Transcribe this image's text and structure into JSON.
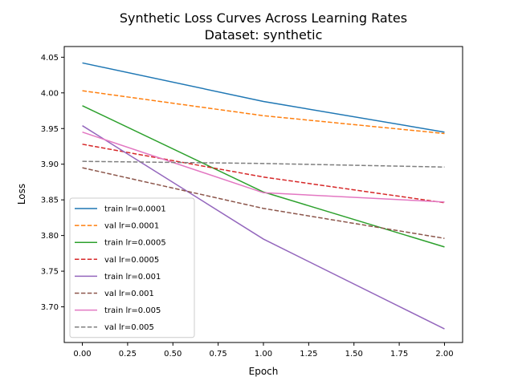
{
  "chart_data": {
    "type": "line",
    "title": "Synthetic Loss Curves Across Learning Rates",
    "subtitle": "Dataset: synthetic",
    "xlabel": "Epoch",
    "ylabel": "Loss",
    "xlim": [
      -0.1,
      2.1
    ],
    "ylim": [
      3.65,
      4.065
    ],
    "xticks": [
      0.0,
      0.25,
      0.5,
      0.75,
      1.0,
      1.25,
      1.5,
      1.75,
      2.0
    ],
    "xtick_labels": [
      "0.00",
      "0.25",
      "0.50",
      "0.75",
      "1.00",
      "1.25",
      "1.50",
      "1.75",
      "2.00"
    ],
    "yticks": [
      3.7,
      3.75,
      3.8,
      3.85,
      3.9,
      3.95,
      4.0,
      4.05
    ],
    "ytick_labels": [
      "3.70",
      "3.75",
      "3.80",
      "3.85",
      "3.90",
      "3.95",
      "4.00",
      "4.05"
    ],
    "grid": false,
    "legend_position": "lower-left",
    "x": [
      0,
      1,
      2
    ],
    "series": [
      {
        "name": "train lr=0.0001",
        "values": [
          4.042,
          3.988,
          3.945
        ],
        "color": "#1f77b4",
        "dash": "solid"
      },
      {
        "name": "val lr=0.0001",
        "values": [
          4.003,
          3.968,
          3.943
        ],
        "color": "#ff7f0e",
        "dash": "dashed"
      },
      {
        "name": "train lr=0.0005",
        "values": [
          3.982,
          3.861,
          3.784
        ],
        "color": "#2ca02c",
        "dash": "solid"
      },
      {
        "name": "val lr=0.0005",
        "values": [
          3.928,
          3.882,
          3.846
        ],
        "color": "#d62728",
        "dash": "dashed"
      },
      {
        "name": "train lr=0.001",
        "values": [
          3.954,
          3.795,
          3.669
        ],
        "color": "#9467bd",
        "dash": "solid"
      },
      {
        "name": "val lr=0.001",
        "values": [
          3.895,
          3.838,
          3.796
        ],
        "color": "#8c564b",
        "dash": "dashed"
      },
      {
        "name": "train lr=0.005",
        "values": [
          3.945,
          3.86,
          3.847
        ],
        "color": "#e377c2",
        "dash": "solid"
      },
      {
        "name": "val lr=0.005",
        "values": [
          3.904,
          3.901,
          3.896
        ],
        "color": "#7f7f7f",
        "dash": "dashed"
      }
    ]
  }
}
